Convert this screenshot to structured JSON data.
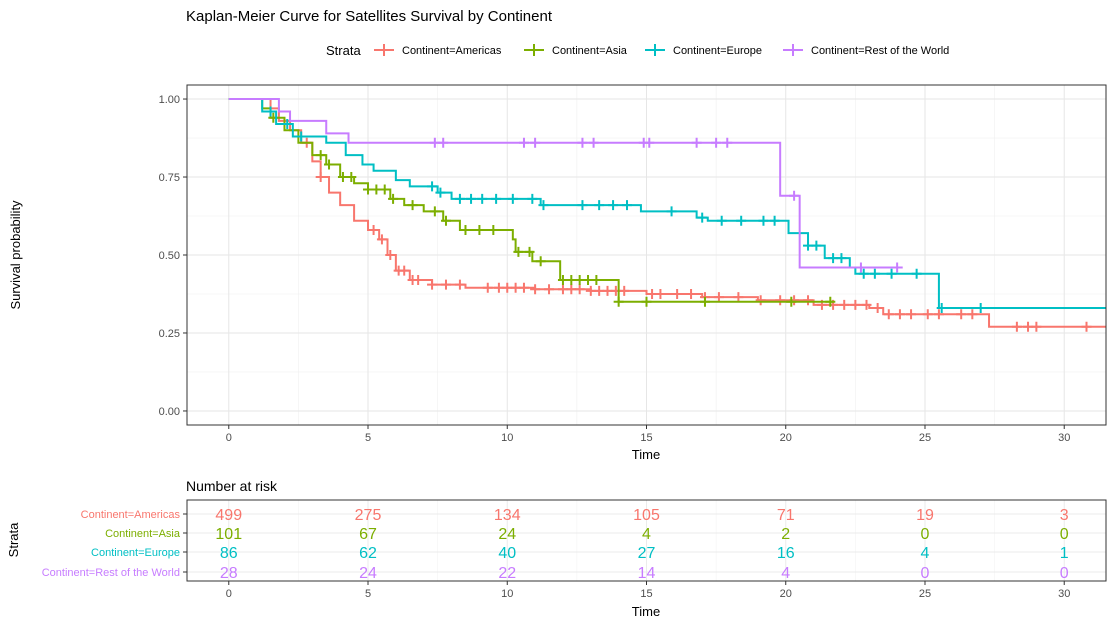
{
  "chart_data": [
    {
      "type": "line",
      "subtype": "kaplan-meier step",
      "title": "Kaplan-Meier Curve for Satellites Survival by Continent",
      "xlabel": "Time",
      "ylabel": "Survival probability",
      "xlim": [
        -1.5,
        31.5
      ],
      "ylim": [
        -0.045,
        1.045
      ],
      "x_ticks": [
        0,
        5,
        10,
        15,
        20,
        25,
        30
      ],
      "x_tick_labels": [
        "0",
        "5",
        "10",
        "15",
        "20",
        "25",
        "30"
      ],
      "y_ticks": [
        0,
        0.25,
        0.5,
        0.75,
        1
      ],
      "y_tick_labels": [
        "0.00",
        "0.25",
        "0.50",
        "0.75",
        "1.00"
      ],
      "grid": true,
      "legend": {
        "title": "Strata",
        "position": "top",
        "entries": [
          "Continent=Americas",
          "Continent=Asia",
          "Continent=Europe",
          "Continent=Rest of the World"
        ]
      },
      "series": [
        {
          "name": "Continent=Americas",
          "color": "#F8766D",
          "steps": [
            [
              0,
              1.0
            ],
            [
              1.5,
              0.97
            ],
            [
              1.8,
              0.93
            ],
            [
              2.2,
              0.9
            ],
            [
              2.6,
              0.86
            ],
            [
              3.0,
              0.8
            ],
            [
              3.3,
              0.75
            ],
            [
              3.6,
              0.7
            ],
            [
              4.0,
              0.66
            ],
            [
              4.5,
              0.61
            ],
            [
              5.0,
              0.58
            ],
            [
              5.4,
              0.55
            ],
            [
              5.7,
              0.5
            ],
            [
              6.0,
              0.45
            ],
            [
              6.5,
              0.42
            ],
            [
              7.3,
              0.405
            ],
            [
              8.5,
              0.395
            ],
            [
              11.0,
              0.39
            ],
            [
              13.0,
              0.385
            ],
            [
              15.0,
              0.375
            ],
            [
              17.0,
              0.365
            ],
            [
              19.0,
              0.355
            ],
            [
              21.0,
              0.34
            ],
            [
              23.0,
              0.33
            ],
            [
              23.5,
              0.31
            ],
            [
              27.3,
              0.27
            ],
            [
              31.5,
              0.27
            ]
          ],
          "censor_x": [
            2.8,
            3.3,
            5.2,
            5.5,
            5.8,
            6.1,
            6.3,
            6.6,
            6.8,
            7.3,
            7.8,
            8.3,
            9.3,
            9.7,
            10.0,
            10.3,
            10.6,
            11.0,
            11.5,
            12.0,
            12.3,
            12.6,
            13.0,
            13.3,
            13.6,
            13.9,
            14.2,
            15.2,
            15.5,
            16.1,
            16.6,
            17.1,
            17.6,
            18.3,
            19.1,
            19.8,
            20.3,
            20.8,
            21.3,
            21.7,
            22.1,
            22.5,
            22.9,
            23.3,
            23.7,
            24.1,
            24.5,
            25.1,
            25.5,
            26.3,
            26.7,
            28.3,
            28.7,
            29.0,
            30.8
          ]
        },
        {
          "name": "Continent=Asia",
          "color": "#7CAE00",
          "steps": [
            [
              0,
              1.0
            ],
            [
              1.2,
              0.97
            ],
            [
              1.5,
              0.94
            ],
            [
              2.0,
              0.9
            ],
            [
              2.5,
              0.86
            ],
            [
              3.0,
              0.82
            ],
            [
              3.5,
              0.79
            ],
            [
              4.0,
              0.75
            ],
            [
              4.5,
              0.73
            ],
            [
              5.0,
              0.71
            ],
            [
              5.8,
              0.68
            ],
            [
              6.3,
              0.66
            ],
            [
              7.0,
              0.64
            ],
            [
              7.7,
              0.61
            ],
            [
              8.3,
              0.58
            ],
            [
              10.2,
              0.55
            ],
            [
              10.3,
              0.51
            ],
            [
              10.9,
              0.48
            ],
            [
              11.9,
              0.42
            ],
            [
              14.0,
              0.35
            ],
            [
              21.7,
              0.35
            ]
          ],
          "censor_x": [
            1.6,
            3.3,
            3.6,
            4.1,
            4.4,
            5.0,
            5.3,
            5.6,
            5.9,
            6.6,
            7.4,
            7.8,
            8.5,
            9.0,
            9.5,
            10.4,
            10.8,
            11.2,
            12.0,
            12.3,
            12.6,
            12.9,
            13.2,
            14.0,
            15.0,
            17.1,
            20.2,
            21.6
          ]
        },
        {
          "name": "Continent=Europe",
          "color": "#00BFC4",
          "steps": [
            [
              0,
              1.0
            ],
            [
              1.2,
              0.96
            ],
            [
              1.7,
              0.92
            ],
            [
              2.3,
              0.88
            ],
            [
              3.5,
              0.86
            ],
            [
              4.2,
              0.82
            ],
            [
              4.8,
              0.79
            ],
            [
              5.2,
              0.77
            ],
            [
              6.0,
              0.74
            ],
            [
              6.5,
              0.72
            ],
            [
              7.5,
              0.7
            ],
            [
              8.0,
              0.68
            ],
            [
              11.2,
              0.66
            ],
            [
              14.8,
              0.64
            ],
            [
              16.8,
              0.62
            ],
            [
              17.2,
              0.61
            ],
            [
              20.1,
              0.57
            ],
            [
              20.8,
              0.53
            ],
            [
              21.4,
              0.49
            ],
            [
              22.3,
              0.46
            ],
            [
              22.5,
              0.44
            ],
            [
              25.5,
              0.33
            ],
            [
              31.5,
              0.33
            ]
          ],
          "censor_x": [
            1.5,
            2.1,
            2.6,
            7.3,
            7.6,
            8.3,
            8.7,
            9.1,
            9.6,
            10.2,
            10.9,
            11.3,
            12.7,
            13.3,
            13.8,
            14.3,
            15.9,
            17.0,
            17.7,
            18.4,
            19.2,
            19.6,
            20.8,
            21.1,
            21.7,
            22.0,
            22.8,
            23.2,
            23.8,
            24.7,
            25.6,
            27.0
          ]
        },
        {
          "name": "Continent=Rest of the World",
          "color": "#C77CFF",
          "steps": [
            [
              0,
              1.0
            ],
            [
              1.8,
              0.96
            ],
            [
              2.2,
              0.93
            ],
            [
              3.5,
              0.89
            ],
            [
              4.3,
              0.86
            ],
            [
              19.8,
              0.69
            ],
            [
              20.5,
              0.46
            ],
            [
              24.2,
              0.46
            ]
          ],
          "censor_x": [
            7.4,
            7.7,
            10.6,
            11.0,
            12.7,
            13.1,
            14.9,
            15.1,
            16.8,
            17.5,
            17.9,
            20.3,
            22.7,
            24.0
          ]
        }
      ]
    },
    {
      "type": "table",
      "title": "Number at risk",
      "xlabel": "Time",
      "ylabel": "Strata",
      "xlim": [
        -1.5,
        31.5
      ],
      "x_ticks": [
        0,
        5,
        10,
        15,
        20,
        25,
        30
      ],
      "x_tick_labels": [
        "0",
        "5",
        "10",
        "15",
        "20",
        "25",
        "30"
      ],
      "grid": true,
      "rows": [
        {
          "name": "Continent=Americas",
          "color": "#F8766D",
          "values": [
            "499",
            "275",
            "134",
            "105",
            "71",
            "19",
            "3"
          ]
        },
        {
          "name": "Continent=Asia",
          "color": "#7CAE00",
          "values": [
            "101",
            "67",
            "24",
            "4",
            "2",
            "0",
            "0"
          ]
        },
        {
          "name": "Continent=Europe",
          "color": "#00BFC4",
          "values": [
            "86",
            "62",
            "40",
            "27",
            "16",
            "4",
            "1"
          ]
        },
        {
          "name": "Continent=Rest of the World",
          "color": "#C77CFF",
          "values": [
            "28",
            "24",
            "22",
            "14",
            "4",
            "0",
            "0"
          ]
        }
      ]
    }
  ]
}
